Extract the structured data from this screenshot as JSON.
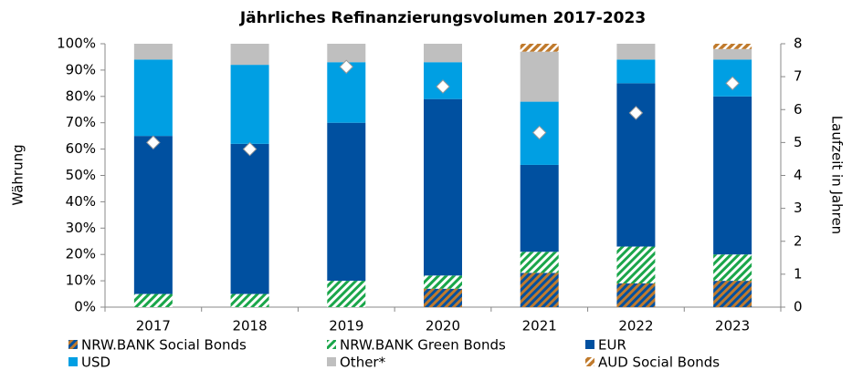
{
  "chart_data": {
    "type": "stacked-bar",
    "title": "Jährliches Refinanzierungsvolumen 2017-2023",
    "y_label": "Währung",
    "y2_label": "Laufzeit in Jahren",
    "categories": [
      "2017",
      "2018",
      "2019",
      "2020",
      "2021",
      "2022",
      "2023"
    ],
    "series": [
      {
        "name": "NRW.BANK Social Bonds",
        "color": "#c07a2c",
        "pattern": "social",
        "values": [
          0,
          0,
          0,
          7,
          13,
          9,
          10
        ]
      },
      {
        "name": "NRW.BANK Green Bonds",
        "color": "#1aa64a",
        "pattern": "green",
        "values": [
          5,
          5,
          10,
          5,
          8,
          14,
          10
        ]
      },
      {
        "name": "EUR",
        "color": "#0050a0",
        "values": [
          60,
          57,
          60,
          67,
          33,
          62,
          60
        ]
      },
      {
        "name": "USD",
        "color": "#009fe3",
        "values": [
          29,
          30,
          23,
          14,
          24,
          9,
          14
        ]
      },
      {
        "name": "Other*",
        "color": "#bfbfbf",
        "values": [
          6,
          8,
          7,
          7,
          19,
          6,
          4
        ]
      },
      {
        "name": "AUD Social Bonds",
        "color": "#c07a2c",
        "pattern": "aud",
        "values": [
          0,
          0,
          0,
          0,
          3,
          0,
          2
        ]
      },
      {
        "axis": "y2",
        "type": "scatter",
        "color": "#ffffff",
        "values": [
          5.0,
          4.8,
          7.3,
          6.7,
          5.3,
          5.9,
          6.8
        ]
      }
    ],
    "ylim": [
      0,
      100
    ],
    "yticks": [
      {
        "value": 0,
        "label": "0%"
      },
      {
        "value": 10,
        "label": "10%"
      },
      {
        "value": 20,
        "label": "20%"
      },
      {
        "value": 30,
        "label": "30%"
      },
      {
        "value": 40,
        "label": "40%"
      },
      {
        "value": 50,
        "label": "50%"
      },
      {
        "value": 60,
        "label": "60%"
      },
      {
        "value": 70,
        "label": "70%"
      },
      {
        "value": 80,
        "label": "80%"
      },
      {
        "value": 90,
        "label": "90%"
      },
      {
        "value": 100,
        "label": "100%"
      }
    ],
    "y2lim": [
      0,
      8
    ],
    "y2ticks": [
      0,
      1,
      2,
      3,
      4,
      5,
      6,
      7,
      8
    ],
    "grid": false,
    "legend": "bottom"
  }
}
